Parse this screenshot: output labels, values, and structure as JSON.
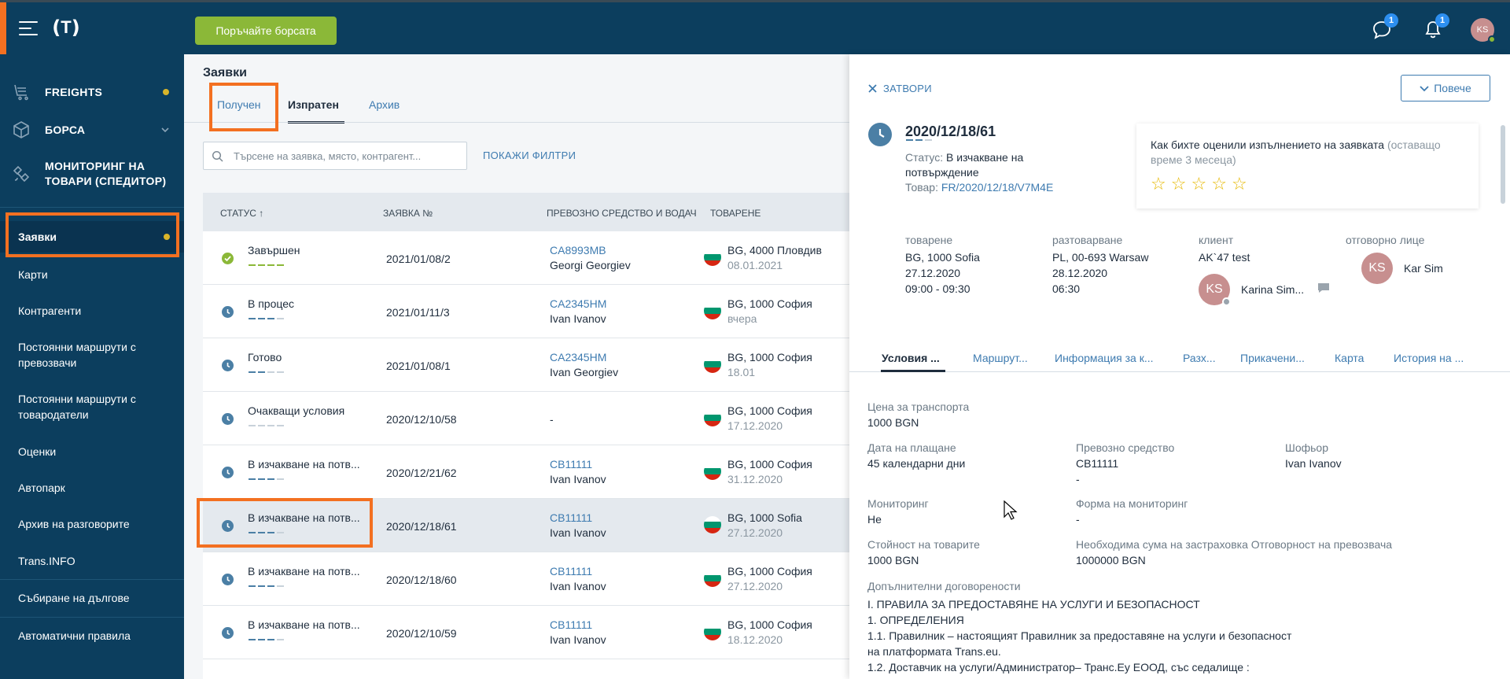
{
  "topbar": {
    "exchange_button": "Поръчайте борсата",
    "messages_badge": "1",
    "notifications_badge": "1",
    "user_initials": "KS"
  },
  "sidebar": {
    "main": [
      {
        "label": "FREIGHTS"
      },
      {
        "label": "БОРСА"
      },
      {
        "label": "МОНИТОРИНГ НА ТОВАРИ (СПЕДИТОР)"
      }
    ],
    "sub": [
      {
        "label": "Заявки"
      },
      {
        "label": "Карти"
      },
      {
        "label": "Контрагенти"
      },
      {
        "label": "Постоянни маршрути с превозвачи"
      },
      {
        "label": "Постоянни маршрути с товародатели"
      },
      {
        "label": "Оценки"
      },
      {
        "label": "Автопарк"
      },
      {
        "label": "Архив на разговорите"
      },
      {
        "label": "Trans.INFO"
      },
      {
        "label": "Събиране на дългове"
      },
      {
        "label": "Автоматични правила"
      }
    ]
  },
  "main": {
    "title": "Заявки",
    "tabs": [
      "Получен",
      "Изпратен",
      "Архив"
    ],
    "search_placeholder": "Търсене на заявка, място, контрагент...",
    "filters_link": "ПОКАЖИ ФИЛТРИ",
    "columns": [
      "СТАТУС ↑",
      "ЗАЯВКА №",
      "ПРЕВОЗНО СРЕДСТВО И ВОДАЧ",
      "ТОВАРЕНЕ"
    ],
    "rows": [
      {
        "status": "Завършен",
        "number": "2021/01/08/2",
        "plate": "CA8993MB",
        "driver": "Georgi Georgiev",
        "place": "BG, 4000 Пловдив",
        "date": "08.01.2021"
      },
      {
        "status": "В процес",
        "number": "2021/01/11/3",
        "plate": "CA2345HM",
        "driver": "Ivan Ivanov",
        "place": "BG, 1000 София",
        "date": "вчера"
      },
      {
        "status": "Готово",
        "number": "2021/01/08/1",
        "plate": "CA2345HM",
        "driver": "Ivan Georgiev",
        "place": "BG, 1000 София",
        "date": "18.01"
      },
      {
        "status": "Очакващи условия",
        "number": "2020/12/10/58",
        "plate": "-",
        "driver": "",
        "place": "BG, 1000 София",
        "date": "17.12.2020"
      },
      {
        "status": "В изчакване на потв...",
        "number": "2020/12/21/62",
        "plate": "CB11111",
        "driver": "Ivan Ivanov",
        "place": "BG, 1000 София",
        "date": "31.12.2020"
      },
      {
        "status": "В изчакване на потв...",
        "number": "2020/12/18/61",
        "plate": "CB11111",
        "driver": "Ivan Ivanov",
        "place": "BG, 1000 Sofia",
        "date": "27.12.2020"
      },
      {
        "status": "В изчакване на потв...",
        "number": "2020/12/18/60",
        "plate": "CB11111",
        "driver": "Ivan Ivanov",
        "place": "BG, 1000 София",
        "date": "27.12.2020"
      },
      {
        "status": "В изчакване на потв...",
        "number": "2020/12/10/59",
        "plate": "CB11111",
        "driver": "Ivan Ivanov",
        "place": "BG, 1000 София",
        "date": "18.12.2020"
      }
    ]
  },
  "panel": {
    "close_label": "ЗАТВОРИ",
    "more_label": "Повече",
    "order_number": "2020/12/18/61",
    "status_label": "Статус:",
    "status_value": "В изчакване на потвърждение",
    "goods_label": "Товар:",
    "goods_value": "FR/2020/12/18/V7M4E",
    "rating_question": "Как бихте оценили изпълнението на заявката",
    "rating_hint": "(оставащо време 3 месеца)",
    "loading": {
      "label": "товарене",
      "place": "BG, 1000 Sofia",
      "date": "27.12.2020",
      "time": "09:00 - 09:30"
    },
    "unloading": {
      "label": "разтоварване",
      "place": "PL, 00-693 Warsaw",
      "date": "28.12.2020",
      "time": "06:30"
    },
    "client": {
      "label": "клиент",
      "name": "AK`47 test",
      "contact_initials": "KS",
      "contact_name": "Karina Sim..."
    },
    "responsible": {
      "label": "отговорно лице",
      "initials": "KS",
      "name": "Kar Sim"
    },
    "tabs": [
      "Условия ...",
      "Маршрут...",
      "Информация за к...",
      "Разх...",
      "Прикачени...",
      "Карта",
      "История на ..."
    ],
    "fields": {
      "price_label": "Цена за транспорта",
      "price_value": "1000 BGN",
      "payment_label": "Дата на плащане",
      "payment_value": "45 календарни дни",
      "vehicle_label": "Превозно средство",
      "vehicle_value": "CB11111",
      "vehicle_value2": "-",
      "driver_label": "Шофьор",
      "driver_value": "Ivan Ivanov",
      "monitoring_label": "Мониторинг",
      "monitoring_value": "Не",
      "monitoring_form_label": "Форма на мониторинг",
      "monitoring_form_value": "-",
      "goods_value_label": "Стойност на товарите",
      "goods_value_value": "1000 BGN",
      "insurance_label": "Необходима сума на застраховка Отговорност на превозвача",
      "insurance_value": "1000000 BGN",
      "extra_label": "Допълнителни договорености"
    },
    "terms": [
      "I. ПРАВИЛА ЗА ПРЕДОСТАВЯНЕ НА УСЛУГИ И БЕЗОПАСНОСТ",
      "1. ОПРЕДЕЛЕНИЯ",
      "1.1. Правилник – настоящият Правилник за предоставяне на услуги и безопасност",
      "на платформата Trans.eu.",
      "1.2. Доставчик на услуги/Администратор– Транс.Еу ЕООД, със седалище :"
    ]
  }
}
